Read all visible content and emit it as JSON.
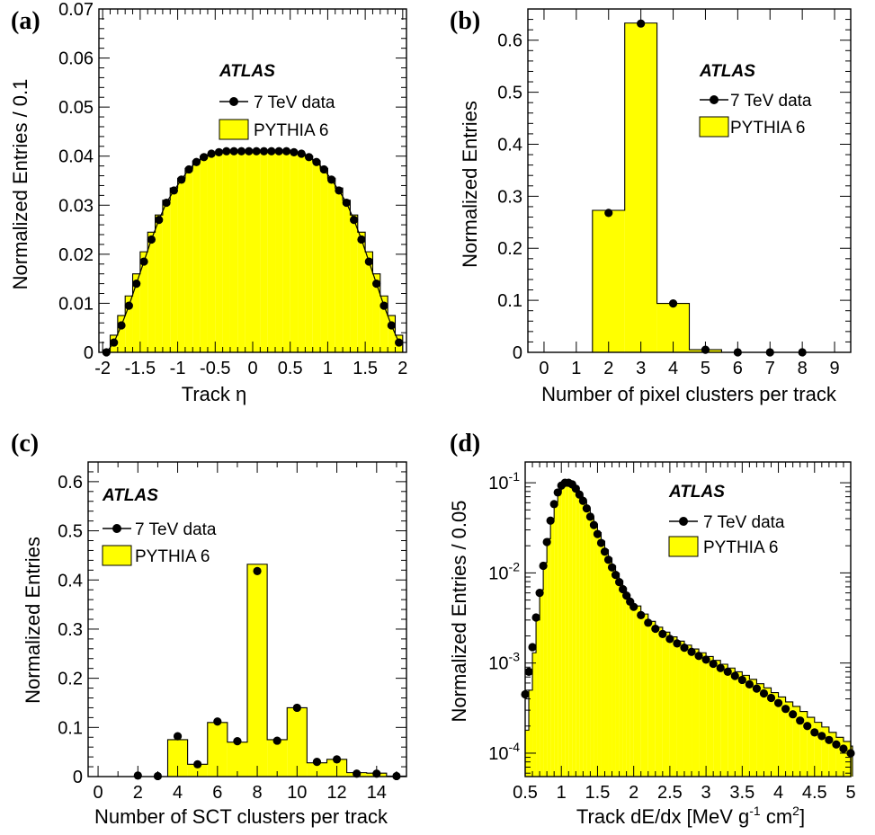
{
  "chart_data": [
    {
      "panel": "(a)",
      "type": "bar",
      "atlas_label": "ATLAS",
      "legend": {
        "data": "7 TeV data",
        "mc": "PYTHIA 6",
        "placement": "top"
      },
      "xlabel": "Track η",
      "ylabel": "Normalized Entries / 0.1",
      "xlim": [
        -2.05,
        2.05
      ],
      "ylim": [
        0,
        0.07
      ],
      "x_ticks": [
        -2,
        -1.5,
        -1,
        -0.5,
        0,
        0.5,
        1,
        1.5,
        2
      ],
      "x_tick_labels": [
        "-2",
        "-1.5",
        "-1",
        "-0.5",
        "0",
        "0.5",
        "1",
        "1.5",
        "2"
      ],
      "y_ticks": [
        0,
        0.01,
        0.02,
        0.03,
        0.04,
        0.05,
        0.06,
        0.07
      ],
      "y_tick_labels": [
        "0",
        "0.01",
        "0.02",
        "0.03",
        "0.04",
        "0.05",
        "0.06",
        "0.07"
      ],
      "bin_edges": [
        -2.0,
        -1.9,
        -1.8,
        -1.7,
        -1.6,
        -1.5,
        -1.4,
        -1.3,
        -1.2,
        -1.1,
        -1.0,
        -0.9,
        -0.8,
        -0.7,
        -0.6,
        -0.5,
        -0.4,
        -0.3,
        -0.2,
        -0.1,
        0.0,
        0.1,
        0.2,
        0.3,
        0.4,
        0.5,
        0.6,
        0.7,
        0.8,
        0.9,
        1.0,
        1.1,
        1.2,
        1.3,
        1.4,
        1.5,
        1.6,
        1.7,
        1.8,
        1.9,
        2.0
      ],
      "series": [
        {
          "name": "PYTHIA 6",
          "values": [
            0.0005,
            0.0035,
            0.0075,
            0.0115,
            0.016,
            0.0205,
            0.0245,
            0.028,
            0.031,
            0.0335,
            0.0355,
            0.0375,
            0.039,
            0.04,
            0.0405,
            0.0408,
            0.041,
            0.041,
            0.041,
            0.041,
            0.041,
            0.041,
            0.041,
            0.041,
            0.041,
            0.0408,
            0.0405,
            0.04,
            0.039,
            0.0375,
            0.0355,
            0.0335,
            0.031,
            0.028,
            0.0245,
            0.0205,
            0.016,
            0.0115,
            0.0075,
            0.0035
          ]
        },
        {
          "name": "7 TeV data",
          "x": [
            -1.95,
            -1.85,
            -1.75,
            -1.65,
            -1.55,
            -1.45,
            -1.35,
            -1.25,
            -1.15,
            -1.05,
            -0.95,
            -0.85,
            -0.75,
            -0.65,
            -0.55,
            -0.45,
            -0.35,
            -0.25,
            -0.15,
            -0.05,
            0.05,
            0.15,
            0.25,
            0.35,
            0.45,
            0.55,
            0.65,
            0.75,
            0.85,
            0.95,
            1.05,
            1.15,
            1.25,
            1.35,
            1.45,
            1.55,
            1.65,
            1.75,
            1.85,
            1.95
          ],
          "values": [
            0.0,
            0.002,
            0.0055,
            0.0095,
            0.014,
            0.0185,
            0.023,
            0.027,
            0.0305,
            0.033,
            0.0352,
            0.0373,
            0.0388,
            0.0398,
            0.0405,
            0.0408,
            0.041,
            0.041,
            0.041,
            0.041,
            0.041,
            0.041,
            0.041,
            0.041,
            0.041,
            0.0408,
            0.0405,
            0.0398,
            0.0388,
            0.0373,
            0.0352,
            0.033,
            0.0305,
            0.027,
            0.023,
            0.0185,
            0.014,
            0.0095,
            0.0055,
            0.002
          ]
        }
      ]
    },
    {
      "panel": "(b)",
      "type": "bar",
      "atlas_label": "ATLAS",
      "legend": {
        "data": "7 TeV data",
        "mc": "PYTHIA 6",
        "placement": "top-right"
      },
      "xlabel": "Number of pixel clusters per track",
      "ylabel": "Normalized Entries",
      "xlim": [
        -0.5,
        9.5
      ],
      "ylim": [
        0,
        0.66
      ],
      "x_ticks": [
        0,
        1,
        2,
        3,
        4,
        5,
        6,
        7,
        8,
        9
      ],
      "x_tick_labels": [
        "0",
        "1",
        "2",
        "3",
        "4",
        "5",
        "6",
        "7",
        "8",
        "9"
      ],
      "y_ticks": [
        0,
        0.1,
        0.2,
        0.3,
        0.4,
        0.5,
        0.6
      ],
      "y_tick_labels": [
        "0",
        "0.1",
        "0.2",
        "0.3",
        "0.4",
        "0.5",
        "0.6"
      ],
      "bin_edges": [
        -0.5,
        0.5,
        1.5,
        2.5,
        3.5,
        4.5,
        5.5,
        6.5,
        7.5,
        8.5,
        9.5
      ],
      "series": [
        {
          "name": "PYTHIA 6",
          "values": [
            0,
            0,
            0.273,
            0.633,
            0.094,
            0.005,
            0,
            0,
            0,
            0
          ]
        },
        {
          "name": "7 TeV data",
          "x": [
            2,
            3,
            4,
            5,
            6,
            7,
            8
          ],
          "values": [
            0.268,
            0.632,
            0.094,
            0.005,
            0.0,
            0.0,
            0.0
          ]
        }
      ]
    },
    {
      "panel": "(c)",
      "type": "bar",
      "atlas_label": "ATLAS",
      "legend": {
        "data": "7 TeV data",
        "mc": "PYTHIA 6",
        "placement": "top-left"
      },
      "xlabel": "Number of SCT clusters per track",
      "ylabel": "Normalized Entries",
      "xlim": [
        -0.5,
        15.5
      ],
      "ylim": [
        0,
        0.64
      ],
      "x_ticks": [
        0,
        2,
        4,
        6,
        8,
        10,
        12,
        14
      ],
      "x_tick_labels": [
        "0",
        "2",
        "4",
        "6",
        "8",
        "10",
        "12",
        "14"
      ],
      "y_ticks": [
        0,
        0.1,
        0.2,
        0.3,
        0.4,
        0.5,
        0.6
      ],
      "y_tick_labels": [
        "0",
        "0.1",
        "0.2",
        "0.3",
        "0.4",
        "0.5",
        "0.6"
      ],
      "bin_edges": [
        -0.5,
        0.5,
        1.5,
        2.5,
        3.5,
        4.5,
        5.5,
        6.5,
        7.5,
        8.5,
        9.5,
        10.5,
        11.5,
        12.5,
        13.5,
        14.5,
        15.5
      ],
      "series": [
        {
          "name": "PYTHIA 6",
          "values": [
            0,
            0,
            0,
            0,
            0.075,
            0.025,
            0.11,
            0.07,
            0.432,
            0.075,
            0.14,
            0.028,
            0.035,
            0.008,
            0.007,
            0.001
          ]
        },
        {
          "name": "7 TeV data",
          "x": [
            2,
            3,
            4,
            5,
            6,
            7,
            8,
            9,
            10,
            11,
            12,
            13,
            14,
            15
          ],
          "values": [
            0.002,
            0.001,
            0.082,
            0.025,
            0.112,
            0.072,
            0.418,
            0.073,
            0.14,
            0.03,
            0.035,
            0.006,
            0.006,
            0.001
          ]
        }
      ]
    },
    {
      "panel": "(d)",
      "type": "bar",
      "atlas_label": "ATLAS",
      "legend": {
        "data": "7 TeV data",
        "mc": "PYTHIA 6",
        "placement": "top-right"
      },
      "xlabel": "Track dE/dx [MeV g",
      "xlabel_sup1": "-1",
      "xlabel_mid": " cm",
      "xlabel_sup2": "2",
      "xlabel_end": "]",
      "ylabel": "Normalized Entries / 0.05",
      "y_scale": "log",
      "xlim": [
        0.5,
        5.0
      ],
      "ylim": [
        5.5e-05,
        0.17
      ],
      "x_ticks": [
        0.5,
        1,
        1.5,
        2,
        2.5,
        3,
        3.5,
        4,
        4.5,
        5
      ],
      "x_tick_labels": [
        "0.5",
        "1",
        "1.5",
        "2",
        "2.5",
        "3",
        "3.5",
        "4",
        "4.5",
        "5"
      ],
      "y_ticks": [
        0.0001,
        0.001,
        0.01,
        0.1
      ],
      "y_tick_labels": [
        {
          "base": "10",
          "exp": "-4"
        },
        {
          "base": "10",
          "exp": "-3"
        },
        {
          "base": "10",
          "exp": "-2"
        },
        {
          "base": "10",
          "exp": "-1"
        }
      ],
      "bin_width": 0.05,
      "data_points": [
        [
          0.5,
          0.00045
        ],
        [
          0.55,
          0.0008
        ],
        [
          0.6,
          0.0015
        ],
        [
          0.65,
          0.0032
        ],
        [
          0.7,
          0.006
        ],
        [
          0.75,
          0.012
        ],
        [
          0.8,
          0.022
        ],
        [
          0.85,
          0.038
        ],
        [
          0.9,
          0.058
        ],
        [
          0.95,
          0.078
        ],
        [
          1.0,
          0.093
        ],
        [
          1.05,
          0.1
        ],
        [
          1.1,
          0.1
        ],
        [
          1.15,
          0.096
        ],
        [
          1.2,
          0.086
        ],
        [
          1.25,
          0.074
        ],
        [
          1.3,
          0.063
        ],
        [
          1.35,
          0.052
        ],
        [
          1.4,
          0.042
        ],
        [
          1.45,
          0.034
        ],
        [
          1.5,
          0.027
        ],
        [
          1.55,
          0.0215
        ],
        [
          1.6,
          0.0172
        ],
        [
          1.65,
          0.014
        ],
        [
          1.7,
          0.0115
        ],
        [
          1.75,
          0.0095
        ],
        [
          1.8,
          0.0079
        ],
        [
          1.85,
          0.0066
        ],
        [
          1.9,
          0.0056
        ],
        [
          1.95,
          0.0048
        ],
        [
          2.0,
          0.0042
        ],
        [
          2.1,
          0.0034
        ],
        [
          2.2,
          0.0028
        ],
        [
          2.3,
          0.0024
        ],
        [
          2.4,
          0.0021
        ],
        [
          2.5,
          0.00185
        ],
        [
          2.6,
          0.00165
        ],
        [
          2.7,
          0.00148
        ],
        [
          2.8,
          0.00133
        ],
        [
          2.9,
          0.0012
        ],
        [
          3.0,
          0.00109
        ],
        [
          3.1,
          0.00098
        ],
        [
          3.2,
          0.00088
        ],
        [
          3.3,
          0.0008
        ],
        [
          3.4,
          0.00072
        ],
        [
          3.5,
          0.00065
        ],
        [
          3.6,
          0.00058
        ],
        [
          3.7,
          0.00052
        ],
        [
          3.8,
          0.00046
        ],
        [
          3.9,
          0.00041
        ],
        [
          4.0,
          0.00036
        ],
        [
          4.1,
          0.00031
        ],
        [
          4.2,
          0.00027
        ],
        [
          4.3,
          0.00023
        ],
        [
          4.4,
          0.0002
        ],
        [
          4.5,
          0.00017
        ],
        [
          4.6,
          0.000155
        ],
        [
          4.7,
          0.00014
        ],
        [
          4.8,
          0.000125
        ],
        [
          4.9,
          0.000112
        ],
        [
          5.0,
          0.0001
        ]
      ],
      "mc_points": [
        [
          0.5,
          0.00018
        ],
        [
          0.55,
          0.0005
        ],
        [
          0.6,
          0.0013
        ],
        [
          0.65,
          0.003
        ],
        [
          0.7,
          0.0065
        ],
        [
          0.75,
          0.013
        ],
        [
          0.8,
          0.024
        ],
        [
          0.85,
          0.04
        ],
        [
          0.9,
          0.061
        ],
        [
          0.95,
          0.08
        ],
        [
          1.0,
          0.095
        ],
        [
          1.05,
          0.101
        ],
        [
          1.1,
          0.099
        ],
        [
          1.15,
          0.092
        ],
        [
          1.2,
          0.082
        ],
        [
          1.25,
          0.071
        ],
        [
          1.3,
          0.061
        ],
        [
          1.35,
          0.051
        ],
        [
          1.4,
          0.042
        ],
        [
          1.45,
          0.0345
        ],
        [
          1.5,
          0.028
        ],
        [
          1.55,
          0.0225
        ],
        [
          1.6,
          0.018
        ],
        [
          1.65,
          0.0146
        ],
        [
          1.7,
          0.012
        ],
        [
          1.75,
          0.0099
        ],
        [
          1.8,
          0.0082
        ],
        [
          1.85,
          0.0068
        ],
        [
          1.9,
          0.0057
        ],
        [
          1.95,
          0.0049
        ],
        [
          2.0,
          0.0043
        ],
        [
          2.1,
          0.0035
        ],
        [
          2.2,
          0.0029
        ],
        [
          2.3,
          0.0025
        ],
        [
          2.4,
          0.0022
        ],
        [
          2.5,
          0.00195
        ],
        [
          2.6,
          0.00175
        ],
        [
          2.7,
          0.00158
        ],
        [
          2.8,
          0.00143
        ],
        [
          2.9,
          0.0013
        ],
        [
          3.0,
          0.00118
        ],
        [
          3.1,
          0.00107
        ],
        [
          3.2,
          0.00097
        ],
        [
          3.3,
          0.00088
        ],
        [
          3.4,
          0.0008
        ],
        [
          3.5,
          0.00073
        ],
        [
          3.6,
          0.00066
        ],
        [
          3.7,
          0.00059
        ],
        [
          3.8,
          0.00053
        ],
        [
          3.9,
          0.00047
        ],
        [
          4.0,
          0.00042
        ],
        [
          4.1,
          0.00037
        ],
        [
          4.2,
          0.00033
        ],
        [
          4.3,
          0.00029
        ],
        [
          4.4,
          0.00025
        ],
        [
          4.5,
          0.00022
        ],
        [
          4.6,
          0.000195
        ],
        [
          4.7,
          0.00017
        ],
        [
          4.8,
          0.00015
        ],
        [
          4.9,
          0.000135
        ],
        [
          5.0,
          0.00012
        ]
      ]
    }
  ]
}
